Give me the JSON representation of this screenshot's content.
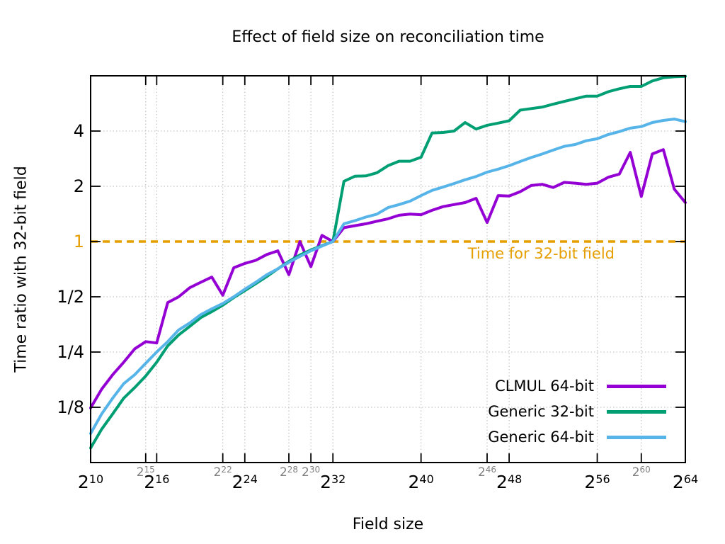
{
  "chart_data": {
    "type": "line",
    "title": "Effect of field size on reconciliation time",
    "xlabel": "Field size",
    "ylabel": "Time ratio with 32-bit field",
    "grid": true,
    "legend_position": "bottom-right-inside",
    "x_axis": {
      "scale": "powers-of-two",
      "tick_base": "2",
      "exponent_range": [
        10,
        64
      ],
      "major_tick_exponents": [
        10,
        16,
        24,
        32,
        40,
        48,
        56,
        64
      ],
      "minor_tick_exponents": [
        15,
        22,
        28,
        30,
        46,
        60
      ]
    },
    "y_axis": {
      "scale": "log2",
      "range": [
        0.0625,
        8
      ],
      "ticks": [
        {
          "value": 4,
          "label": "4"
        },
        {
          "value": 2,
          "label": "2"
        },
        {
          "value": 1,
          "label": "1",
          "highlight": true
        },
        {
          "value": 0.5,
          "label": "1/2"
        },
        {
          "value": 0.25,
          "label": "1/4"
        },
        {
          "value": 0.125,
          "label": "1/8"
        }
      ]
    },
    "reference_line": {
      "value": 1,
      "label": "Time for 32-bit field",
      "color": "#E69F00",
      "style": "dashed"
    },
    "series": [
      {
        "name": "CLMUL 64-bit",
        "color": "#9400D3",
        "values": [
          0.124,
          0.157,
          0.188,
          0.22,
          0.26,
          0.285,
          0.28,
          0.465,
          0.5,
          0.56,
          0.6,
          0.64,
          0.51,
          0.72,
          0.76,
          0.79,
          0.85,
          0.89,
          0.66,
          1.0,
          0.73,
          1.08,
          1.0,
          1.19,
          1.22,
          1.25,
          1.29,
          1.33,
          1.39,
          1.41,
          1.4,
          1.48,
          1.55,
          1.59,
          1.63,
          1.72,
          1.27,
          1.78,
          1.77,
          1.87,
          2.02,
          2.05,
          1.97,
          2.1,
          2.08,
          2.05,
          2.08,
          2.24,
          2.33,
          3.06,
          1.76,
          3.0,
          3.17,
          1.93,
          1.63
        ]
      },
      {
        "name": "Generic 32-bit",
        "color": "#009E73",
        "values": [
          0.075,
          0.095,
          0.115,
          0.14,
          0.16,
          0.185,
          0.22,
          0.27,
          0.31,
          0.345,
          0.385,
          0.415,
          0.45,
          0.495,
          0.54,
          0.59,
          0.645,
          0.71,
          0.78,
          0.845,
          0.9,
          0.95,
          1.0,
          2.13,
          2.27,
          2.28,
          2.37,
          2.59,
          2.74,
          2.74,
          2.88,
          3.9,
          3.93,
          4.0,
          4.45,
          4.1,
          4.3,
          4.42,
          4.55,
          5.2,
          5.3,
          5.4,
          5.6,
          5.8,
          6.0,
          6.2,
          6.2,
          6.55,
          6.8,
          7.0,
          7.0,
          7.5,
          7.8,
          7.9,
          7.95
        ]
      },
      {
        "name": "Generic 64-bit",
        "color": "#56B4E9",
        "values": [
          0.09,
          0.115,
          0.14,
          0.168,
          0.188,
          0.217,
          0.25,
          0.285,
          0.33,
          0.36,
          0.4,
          0.43,
          0.46,
          0.5,
          0.55,
          0.6,
          0.66,
          0.71,
          0.77,
          0.83,
          0.89,
          0.945,
          1.0,
          1.25,
          1.3,
          1.36,
          1.41,
          1.53,
          1.59,
          1.66,
          1.78,
          1.9,
          1.98,
          2.07,
          2.17,
          2.26,
          2.39,
          2.48,
          2.59,
          2.73,
          2.87,
          3.0,
          3.15,
          3.3,
          3.38,
          3.54,
          3.63,
          3.83,
          3.97,
          4.15,
          4.23,
          4.45,
          4.57,
          4.65,
          4.5
        ]
      }
    ]
  },
  "colors": {
    "axis": "#000000",
    "grid": "#c6c6c6",
    "minor_tick_label": "#808080"
  }
}
